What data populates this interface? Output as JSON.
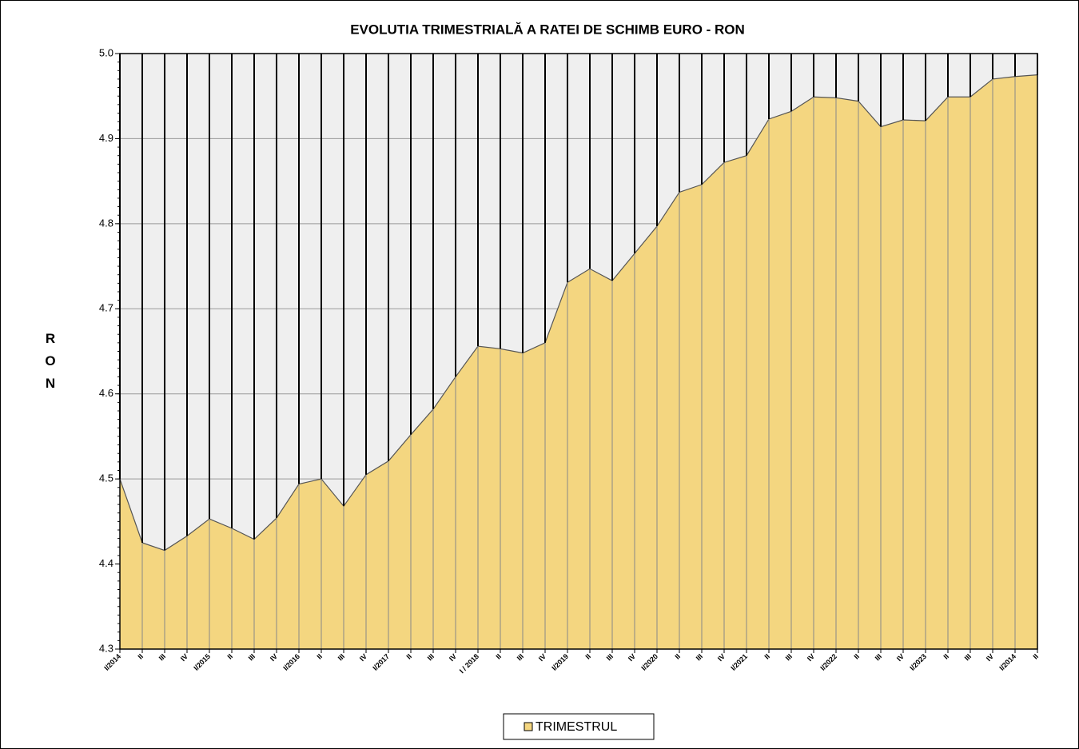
{
  "chart_data": {
    "type": "area",
    "title": "EVOLUTIA TRIMESTRIALĂ  A  RATEI DE SCHIMB EURO - RON",
    "y_label": "RON",
    "categories": [
      "I/2014",
      "II",
      "III",
      "IV",
      "I/2015",
      "II",
      "III",
      "IV",
      "I/2016",
      "II",
      "III",
      "IV",
      "I/2017",
      "II",
      "III",
      "IV",
      "I / 2018",
      "II",
      "III",
      "IV",
      "I/2019",
      "II",
      "III",
      "IV",
      "I/2020",
      "II",
      "III",
      "IV",
      "I/2021",
      "II",
      "III",
      "IV",
      "I/2022",
      "II",
      "III",
      "IV",
      "I/2023",
      "II",
      "III",
      "IV",
      "I/2014",
      "II"
    ],
    "series": [
      {
        "name": "TRIMESTRUL",
        "color": "#f4d680",
        "values": [
          4.5,
          4.425,
          4.416,
          4.433,
          4.453,
          4.442,
          4.429,
          4.454,
          4.494,
          4.5,
          4.468,
          4.505,
          4.521,
          4.552,
          4.582,
          4.62,
          4.656,
          4.653,
          4.648,
          4.66,
          4.731,
          4.747,
          4.733,
          4.765,
          4.797,
          4.837,
          4.846,
          4.872,
          4.88,
          4.923,
          4.932,
          4.949,
          4.948,
          4.944,
          4.914,
          4.922,
          4.921,
          4.949,
          4.949,
          4.97,
          4.973,
          4.975
        ]
      }
    ],
    "ylim": [
      4.3,
      5.0
    ],
    "yticks": [
      4.3,
      4.4,
      4.5,
      4.6,
      4.7,
      4.8,
      4.9,
      {
        "value": 5.0,
        "label": "5.0"
      }
    ],
    "grid": true
  }
}
